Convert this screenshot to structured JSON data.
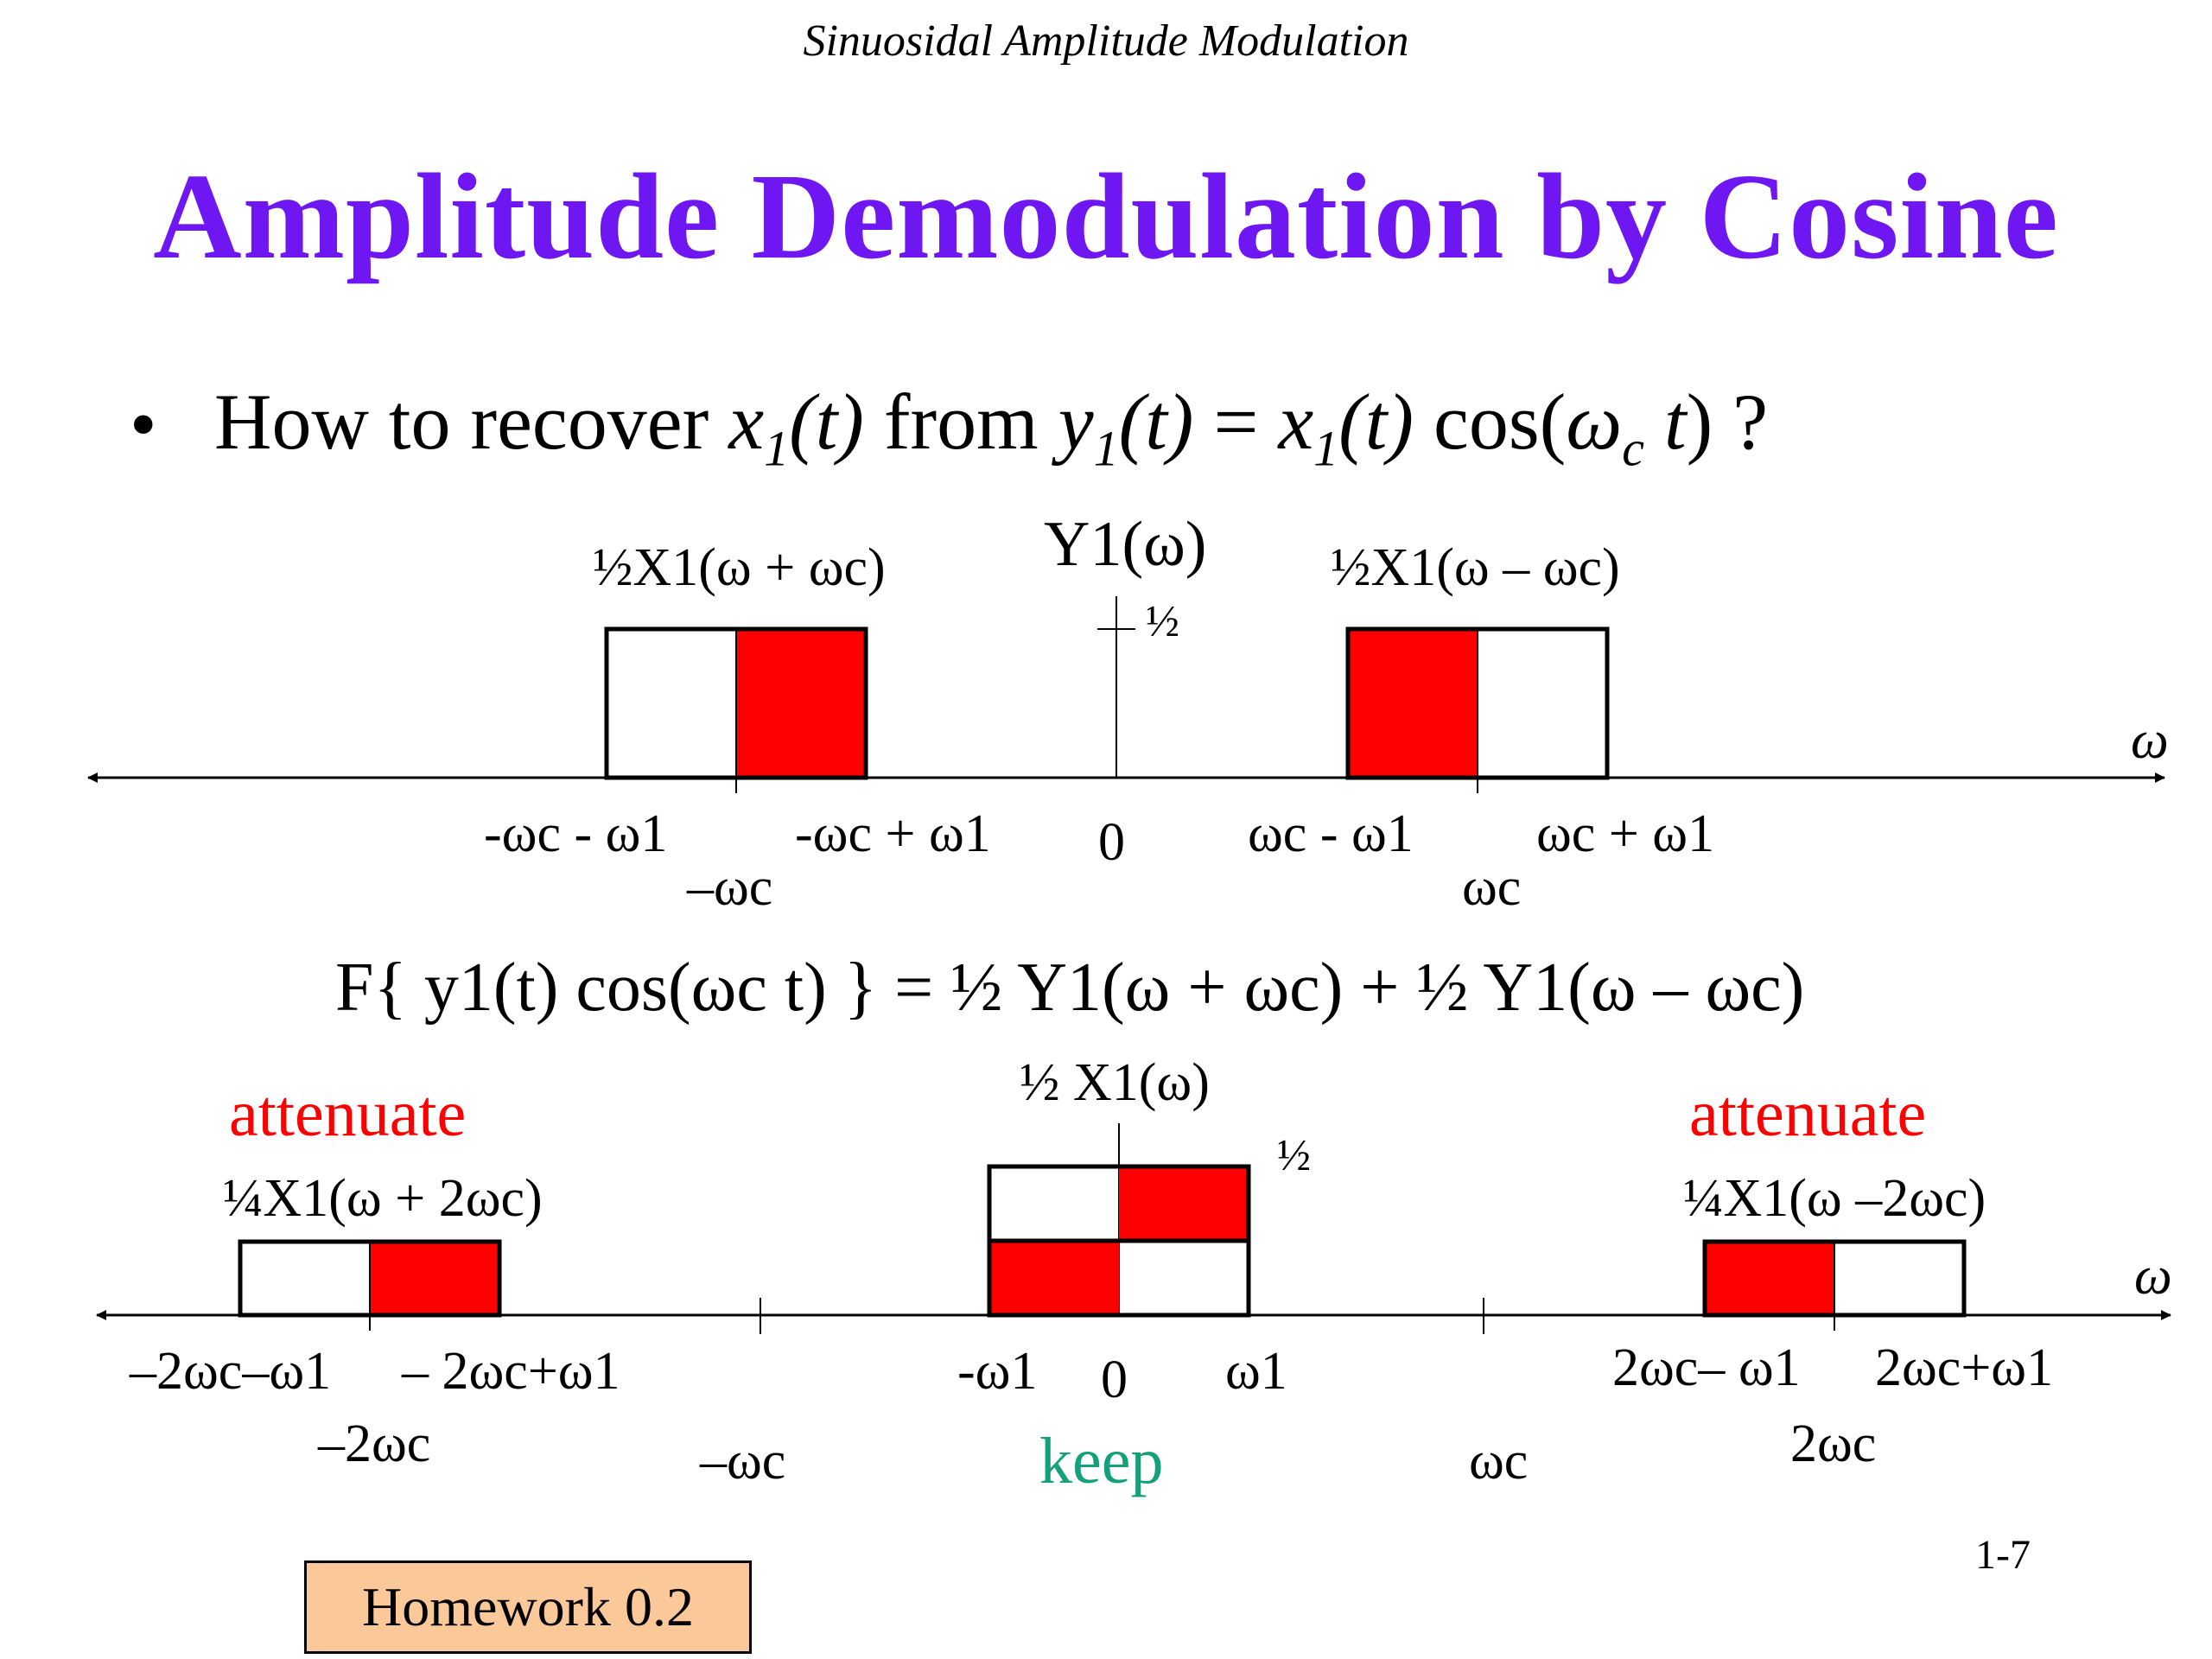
{
  "header": "Sinuosidal Amplitude Modulation",
  "title": "Amplitude Demodulation by Cosine",
  "bullet": {
    "symbol": "•",
    "p1": "How to recover ",
    "x": "x",
    "sub1": "1",
    "t": "(t)",
    "p2": " from ",
    "y": "y",
    "p3": " = ",
    "p4": " cos(",
    "omega": "ω",
    "c": "c",
    "p5": " t",
    "p6": ") ?"
  },
  "top_diagram": {
    "title": "Y1(ω)",
    "height_label": "½",
    "axis_label": "ω",
    "left_spectrum_label": "½X1(ω + ωc)",
    "right_spectrum_label": "½X1(ω – ωc)",
    "ticks": {
      "neg_wc_minus_w1": "-ωc - ω1",
      "neg_wc_plus_w1": "-ωc + ω1",
      "neg_wc": "–ωc",
      "zero": "0",
      "wc_minus_w1": "ωc - ω1",
      "wc_plus_w1": "ωc + ω1",
      "wc": "ωc"
    }
  },
  "formula": "F{ y1(t) cos(ωc t) } = ½ Y1(ω + ωc) + ½ Y1(ω – ωc)",
  "bottom_diagram": {
    "axis_label": "ω",
    "center_label": "½ X1(ω)",
    "height_label": "½",
    "left_word": "attenuate",
    "right_word": "attenuate",
    "center_word": "keep",
    "left_spectrum_label": "¼X1(ω + 2ωc)",
    "right_spectrum_label": "¼X1(ω –2ωc)",
    "ticks": {
      "neg_2wc_minus_w1": "–2ωc–ω1",
      "neg_2wc_plus_w1": "– 2ωc+ω1",
      "neg_2wc": "–2ωc",
      "neg_wc": "–ωc",
      "neg_w1": "-ω1",
      "zero": "0",
      "w1": "ω1",
      "wc": "ωc",
      "two_wc_minus_w1": "2ωc– ω1",
      "two_wc_plus_w1": "2ωc+ω1",
      "two_wc": "2ωc"
    }
  },
  "homework_label": "Homework 0.2",
  "page_number": "1-7",
  "colors": {
    "title": "#6e17f2",
    "fill": "#ff0000",
    "attenuate": "#ff0000",
    "keep": "#14a07a",
    "homework_bg": "#fbc89a"
  }
}
